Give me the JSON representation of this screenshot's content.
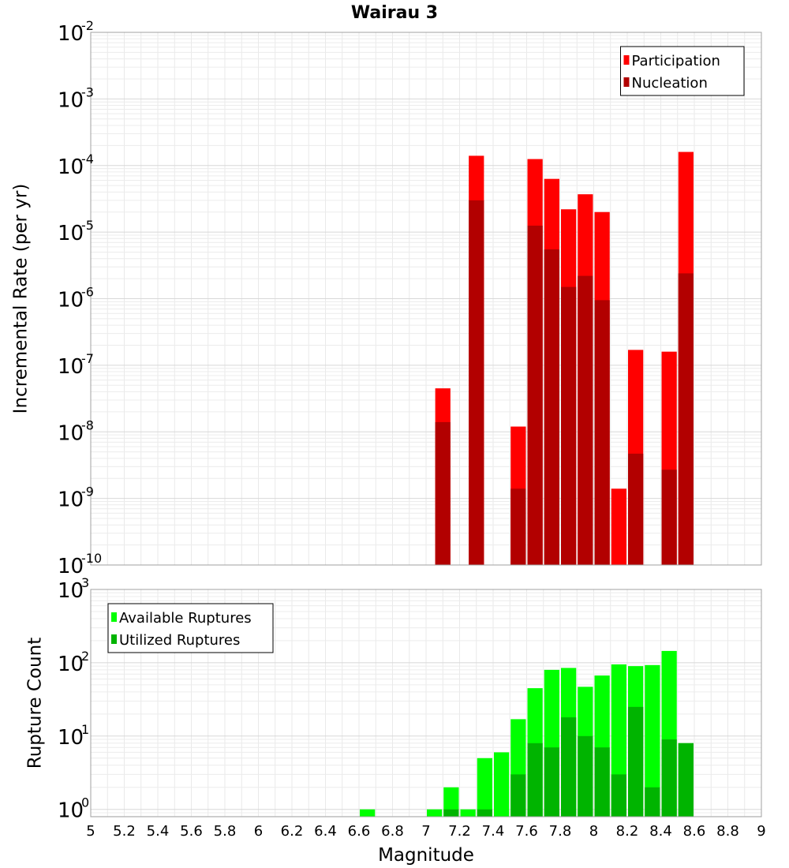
{
  "chart_data": {
    "title": "Wairau 3",
    "xlabel": "Magnitude",
    "xlim": [
      5,
      9
    ],
    "x_ticks": [
      "5",
      "5.2",
      "5.4",
      "5.6",
      "5.8",
      "6",
      "6.2",
      "6.4",
      "6.6",
      "6.8",
      "7",
      "7.2",
      "7.4",
      "7.6",
      "7.8",
      "8",
      "8.2",
      "8.4",
      "8.6",
      "8.8",
      "9"
    ],
    "bin_width": 0.1,
    "grid": true,
    "panels": [
      {
        "type": "bar",
        "scale": "log",
        "ylabel": "Incremental Rate (per yr)",
        "ylim_exp": [
          -10,
          -2
        ],
        "legend": "top-right",
        "series": [
          {
            "name": "Participation",
            "color": "#ff0000",
            "x": [
              7.1,
              7.3,
              7.55,
              7.65,
              7.75,
              7.85,
              7.95,
              8.05,
              8.15,
              8.25,
              8.45,
              8.55
            ],
            "values": [
              4.5e-08,
              0.00014,
              1.2e-08,
              0.000125,
              6.3e-05,
              2.2e-05,
              3.7e-05,
              2e-05,
              1.4e-09,
              1.7e-07,
              1.6e-07,
              0.00016
            ]
          },
          {
            "name": "Nucleation",
            "color": "#b20000",
            "x": [
              7.1,
              7.3,
              7.55,
              7.65,
              7.75,
              7.85,
              7.95,
              8.05,
              8.25,
              8.45,
              8.55
            ],
            "values": [
              1.4e-08,
              3e-05,
              1.4e-09,
              1.25e-05,
              5.5e-06,
              1.5e-06,
              2.2e-06,
              9.5e-07,
              4.7e-09,
              2.7e-09,
              2.4e-06
            ]
          }
        ]
      },
      {
        "type": "bar",
        "scale": "log",
        "ylabel": "Rupture Count",
        "ylim_exp": [
          -0.1,
          3
        ],
        "legend": "top-left",
        "series": [
          {
            "name": "Available Ruptures",
            "color": "#00ff00",
            "x": [
              6.65,
              7.05,
              7.15,
              7.25,
              7.35,
              7.45,
              7.55,
              7.65,
              7.75,
              7.85,
              7.95,
              8.05,
              8.15,
              8.25,
              8.35,
              8.45,
              8.55
            ],
            "values": [
              1,
              1,
              2,
              1,
              5,
              6,
              17,
              45,
              80,
              85,
              47,
              67,
              95,
              90,
              93,
              145,
              8
            ]
          },
          {
            "name": "Utilized Ruptures",
            "color": "#00b400",
            "x": [
              7.15,
              7.35,
              7.55,
              7.65,
              7.75,
              7.85,
              7.95,
              8.05,
              8.15,
              8.25,
              8.35,
              8.45,
              8.55
            ],
            "values": [
              1,
              1,
              3,
              8,
              7,
              18,
              10,
              7,
              3,
              25,
              2,
              9,
              8
            ]
          }
        ]
      }
    ]
  }
}
